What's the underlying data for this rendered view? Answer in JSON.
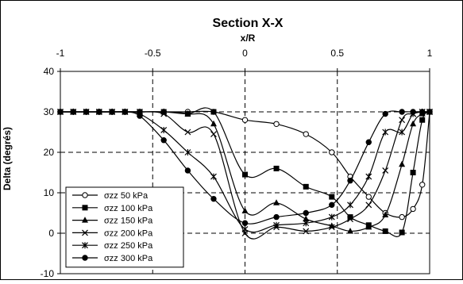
{
  "chart_data": {
    "type": "line",
    "title": "Section X-X",
    "xlabel": "x/R",
    "ylabel": "Delta (degrés)",
    "xlim": [
      -1,
      1
    ],
    "ylim": [
      -10,
      40
    ],
    "xticks": [
      -1,
      -0.5,
      0,
      0.5,
      1
    ],
    "xtick_labels": [
      "-1",
      "-0.5",
      "0",
      "0.5",
      "1"
    ],
    "yticks": [
      -10,
      0,
      10,
      20,
      30,
      40
    ],
    "ytick_labels": [
      "-10",
      "0",
      "10",
      "20",
      "30",
      "40"
    ],
    "grid": true,
    "legend_position": "bottom-left",
    "series": [
      {
        "name": "σzz 50 kPa",
        "marker": "circle-open",
        "x": [
          -1,
          -0.93,
          -0.86,
          -0.79,
          -0.72,
          -0.65,
          -0.57,
          -0.44,
          -0.31,
          -0.17,
          0,
          0.17,
          0.33,
          0.47,
          0.57,
          0.67,
          0.76,
          0.85,
          0.91,
          0.96,
          1
        ],
        "y": [
          30,
          30,
          30,
          30,
          30,
          30,
          30,
          30,
          30,
          30,
          28,
          27,
          24.5,
          20,
          14,
          9,
          5,
          4,
          6,
          12,
          30
        ]
      },
      {
        "name": "σzz 100 kPa",
        "marker": "square-filled",
        "x": [
          -1,
          -0.93,
          -0.86,
          -0.79,
          -0.72,
          -0.65,
          -0.57,
          -0.44,
          -0.31,
          -0.17,
          0,
          0.17,
          0.33,
          0.47,
          0.57,
          0.67,
          0.76,
          0.85,
          0.91,
          0.96,
          1
        ],
        "y": [
          30,
          30,
          30,
          30,
          30,
          30,
          30,
          30,
          29.5,
          30,
          14.5,
          16,
          11.5,
          9,
          4,
          2,
          0.5,
          0.2,
          15,
          28,
          30
        ]
      },
      {
        "name": "σzz 150 kPa",
        "marker": "triangle-filled",
        "x": [
          -1,
          -0.93,
          -0.86,
          -0.79,
          -0.72,
          -0.65,
          -0.57,
          -0.44,
          -0.31,
          -0.17,
          0,
          0.17,
          0.33,
          0.47,
          0.57,
          0.67,
          0.76,
          0.85,
          0.91,
          0.96,
          1
        ],
        "y": [
          30,
          30,
          30,
          30,
          30,
          30,
          30,
          30,
          29.5,
          27,
          5.5,
          7.5,
          3.5,
          1.8,
          0.5,
          1.5,
          4.5,
          17,
          27,
          29.5,
          30
        ]
      },
      {
        "name": "σzz 200 kPa",
        "marker": "x",
        "x": [
          -1,
          -0.93,
          -0.86,
          -0.79,
          -0.72,
          -0.65,
          -0.57,
          -0.44,
          -0.31,
          -0.17,
          0,
          0.17,
          0.33,
          0.47,
          0.57,
          0.67,
          0.76,
          0.85,
          0.91,
          0.96,
          1
        ],
        "y": [
          30,
          30,
          30,
          30,
          30,
          30,
          30,
          29.5,
          25,
          24.5,
          0,
          1.5,
          0.5,
          1.5,
          3.5,
          7,
          15.5,
          28,
          29.5,
          30,
          30
        ]
      },
      {
        "name": "σzz 250 kPa",
        "marker": "star",
        "x": [
          -1,
          -0.93,
          -0.86,
          -0.79,
          -0.72,
          -0.65,
          -0.57,
          -0.44,
          -0.31,
          -0.17,
          0,
          0.17,
          0.33,
          0.47,
          0.57,
          0.67,
          0.76,
          0.85,
          0.91,
          0.96,
          1
        ],
        "y": [
          30,
          30,
          30,
          30,
          30,
          30,
          29.5,
          25.5,
          20,
          14,
          1,
          2,
          2.5,
          4,
          7,
          14,
          25,
          25,
          29.5,
          30,
          30
        ]
      },
      {
        "name": "σzz 300 kPa",
        "marker": "circle-filled",
        "x": [
          -1,
          -0.93,
          -0.86,
          -0.79,
          -0.72,
          -0.65,
          -0.57,
          -0.44,
          -0.31,
          -0.17,
          0,
          0.17,
          0.33,
          0.47,
          0.57,
          0.67,
          0.76,
          0.85,
          0.91,
          0.96,
          1
        ],
        "y": [
          30,
          30,
          30,
          30,
          30,
          30,
          29,
          23,
          15.5,
          8.5,
          2.5,
          4,
          5,
          7,
          13,
          22.5,
          29.5,
          30,
          30,
          30,
          30
        ]
      }
    ]
  }
}
